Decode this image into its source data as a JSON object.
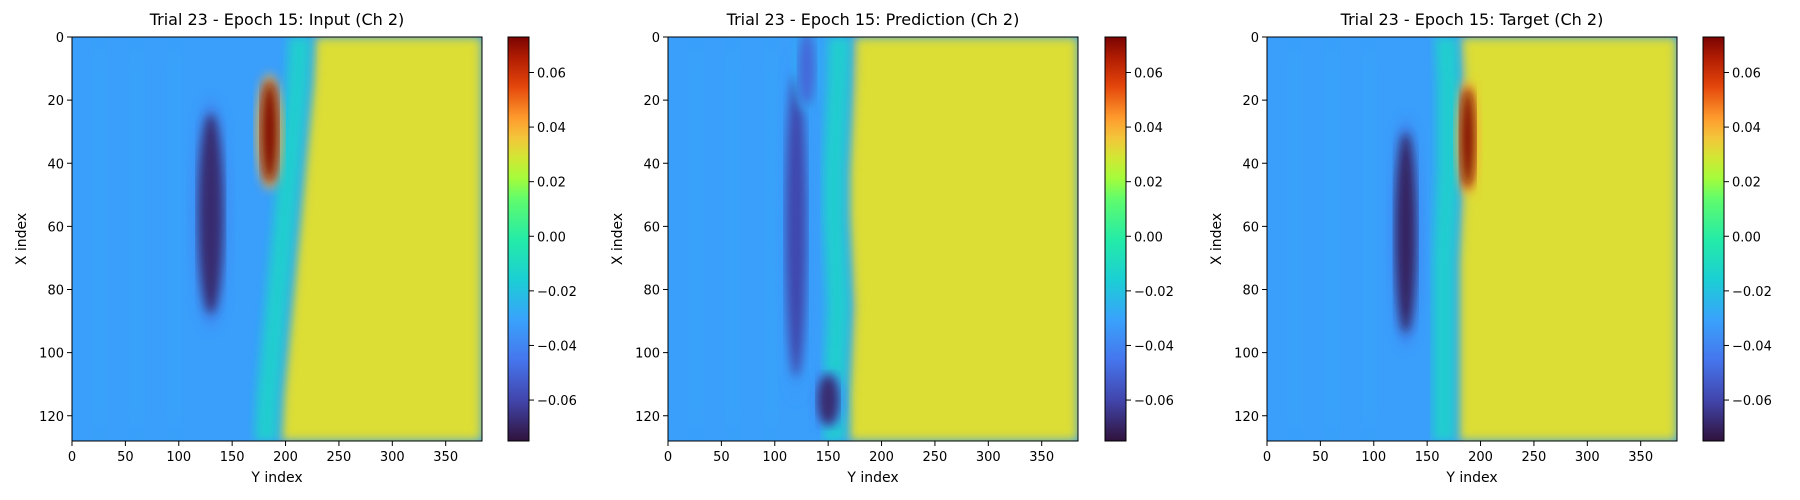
{
  "chart_data": [
    {
      "type": "heatmap",
      "title": "Trial 23 - Epoch 15: Input (Ch 2)",
      "xlabel": "Y index",
      "ylabel": "X index",
      "xlim": [
        0,
        384
      ],
      "ylim": [
        128,
        0
      ],
      "xticks": [
        0,
        50,
        100,
        150,
        200,
        250,
        300,
        350
      ],
      "yticks": [
        0,
        20,
        40,
        60,
        80,
        100,
        120
      ],
      "front_x": [
        228,
        226,
        222,
        218,
        214,
        210,
        206,
        202,
        198,
        196
      ],
      "features": [
        {
          "kind": "low",
          "y": 56,
          "x": 130,
          "ry": 32,
          "rx": 12,
          "value": -0.068
        },
        {
          "kind": "high",
          "y": 30,
          "x": 185,
          "ry": 16,
          "rx": 8,
          "value": 0.072
        }
      ],
      "colorbar": {
        "min": -0.075,
        "max": 0.073,
        "ticks": [
          "0.06",
          "0.04",
          "0.02",
          "0.00",
          "−0.02",
          "−0.04",
          "−0.06"
        ],
        "tick_values": [
          0.06,
          0.04,
          0.02,
          0.0,
          -0.02,
          -0.04,
          -0.06
        ]
      }
    },
    {
      "type": "heatmap",
      "title": "Trial 23 - Epoch 15: Prediction (Ch 2)",
      "xlabel": "Y index",
      "ylabel": "X index",
      "xlim": [
        0,
        384
      ],
      "ylim": [
        128,
        0
      ],
      "xticks": [
        0,
        50,
        100,
        150,
        200,
        250,
        300,
        350
      ],
      "yticks": [
        0,
        20,
        40,
        60,
        80,
        100,
        120
      ],
      "front_x": [
        175,
        174,
        172,
        170,
        170,
        172,
        174,
        172,
        170,
        170
      ],
      "features": [
        {
          "kind": "low",
          "y": 60,
          "x": 120,
          "ry": 48,
          "rx": 10,
          "value": -0.06
        },
        {
          "kind": "low",
          "y": 115,
          "x": 150,
          "ry": 8,
          "rx": 10,
          "value": -0.068
        },
        {
          "kind": "low",
          "y": 10,
          "x": 130,
          "ry": 12,
          "rx": 8,
          "value": -0.05
        }
      ],
      "colorbar": {
        "min": -0.075,
        "max": 0.073,
        "ticks": [
          "0.06",
          "0.04",
          "0.02",
          "0.00",
          "−0.02",
          "−0.04",
          "−0.06"
        ],
        "tick_values": [
          0.06,
          0.04,
          0.02,
          0.0,
          -0.02,
          -0.04,
          -0.06
        ]
      }
    },
    {
      "type": "heatmap",
      "title": "Trial 23 - Epoch 15: Target (Ch 2)",
      "xlabel": "Y index",
      "ylabel": "X index",
      "xlim": [
        0,
        384
      ],
      "ylim": [
        128,
        0
      ],
      "xticks": [
        0,
        50,
        100,
        150,
        200,
        250,
        300,
        350
      ],
      "yticks": [
        0,
        20,
        40,
        60,
        80,
        100,
        120
      ],
      "front_x": [
        182,
        184,
        184,
        184,
        182,
        180,
        180,
        180,
        180,
        180
      ],
      "features": [
        {
          "kind": "low",
          "y": 62,
          "x": 130,
          "ry": 32,
          "rx": 10,
          "value": -0.07
        },
        {
          "kind": "high",
          "y": 32,
          "x": 188,
          "ry": 16,
          "rx": 7,
          "value": 0.072
        }
      ],
      "colorbar": {
        "min": -0.075,
        "max": 0.073,
        "ticks": [
          "0.06",
          "0.04",
          "0.02",
          "0.00",
          "−0.02",
          "−0.04",
          "−0.06"
        ],
        "tick_values": [
          0.06,
          0.04,
          0.02,
          0.0,
          -0.02,
          -0.04,
          -0.06
        ]
      }
    }
  ]
}
